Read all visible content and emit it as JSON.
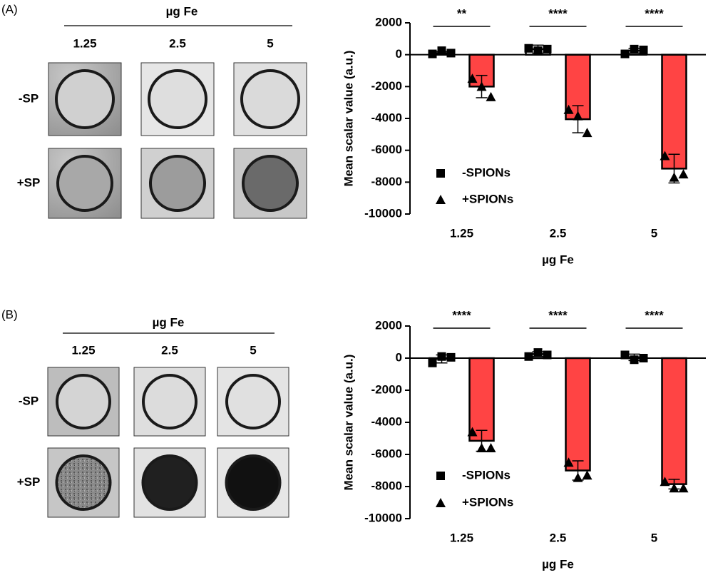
{
  "panels": [
    {
      "label": "(A)",
      "image_axis_label": "µg Fe",
      "image_columns": [
        "1.25",
        "2.5",
        "5"
      ],
      "image_rows": [
        "-SP",
        "+SP"
      ]
    },
    {
      "label": "(B)",
      "image_axis_label": "µg Fe",
      "image_columns": [
        "1.25",
        "2.5",
        "5"
      ],
      "image_rows": [
        "-SP",
        "+SP"
      ]
    }
  ],
  "chart_data": [
    {
      "type": "bar",
      "xlabel": "µg Fe",
      "ylabel": "Mean scalar value (a.u.)",
      "categories": [
        "1.25",
        "2.5",
        "5"
      ],
      "series": [
        {
          "name": "-SPIONs",
          "color": "#000000",
          "fill": "#ffffff",
          "marker": "square",
          "values": [
            100,
            350,
            250
          ],
          "errors": [
            100,
            250,
            150
          ],
          "points": [
            [
              50,
              250,
              100
            ],
            [
              400,
              250,
              350
            ],
            [
              50,
              350,
              300
            ]
          ]
        },
        {
          "name": "+SPIONs",
          "color": "#ff4444",
          "fill": "#ff4444",
          "marker": "triangle",
          "values": [
            -2000,
            -4050,
            -7150
          ],
          "errors": [
            700,
            850,
            900
          ],
          "points": [
            [
              -1500,
              -2000,
              -2650
            ],
            [
              -3450,
              -3850,
              -4900
            ],
            [
              -6350,
              -7700,
              -7500
            ]
          ]
        }
      ],
      "significance": [
        "**",
        "****",
        "****"
      ],
      "ylim": [
        -10000,
        2000
      ],
      "yticks": [
        -10000,
        -8000,
        -6000,
        -4000,
        -2000,
        0,
        2000
      ]
    },
    {
      "type": "bar",
      "xlabel": "µg Fe",
      "ylabel": "Mean scalar value (a.u.)",
      "categories": [
        "1.25",
        "2.5",
        "5"
      ],
      "series": [
        {
          "name": "-SPIONs",
          "color": "#000000",
          "fill": "#ffffff",
          "marker": "square",
          "values": [
            -50,
            250,
            50
          ],
          "errors": [
            250,
            150,
            200
          ],
          "points": [
            [
              -300,
              100,
              50
            ],
            [
              100,
              350,
              200
            ],
            [
              200,
              -100,
              0
            ]
          ]
        },
        {
          "name": "+SPIONs",
          "color": "#ff4444",
          "fill": "#ff4444",
          "marker": "triangle",
          "values": [
            -5150,
            -7000,
            -7850
          ],
          "errors": [
            650,
            600,
            300
          ],
          "points": [
            [
              -4600,
              -5600,
              -5600
            ],
            [
              -6500,
              -7450,
              -7300
            ],
            [
              -7700,
              -8100,
              -8100
            ]
          ]
        }
      ],
      "significance": [
        "****",
        "****",
        "****"
      ],
      "ylim": [
        -10000,
        2000
      ],
      "yticks": [
        -10000,
        -8000,
        -6000,
        -4000,
        -2000,
        0,
        2000
      ]
    }
  ]
}
